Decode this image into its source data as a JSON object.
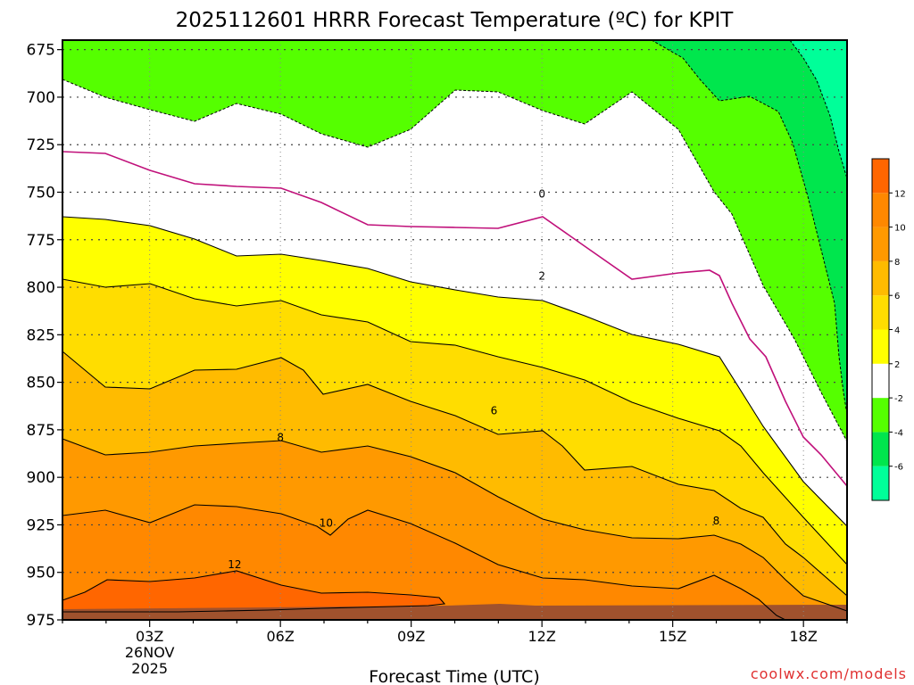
{
  "title": "2025112601 HRRR Forecast Temperature (ºC) for KPIT",
  "credit": "coolwx.com/models",
  "chart_data": {
    "type": "contour",
    "title": "2025112601 HRRR Forecast Temperature (ºC) for KPIT",
    "xlabel": "Forecast Time (UTC)",
    "ylabel": "",
    "x_hours_range": [
      1,
      19
    ],
    "ylim": [
      975,
      670
    ],
    "x_ticks": [
      {
        "hour": 3,
        "label": "03Z",
        "sub": [
          "26NOV",
          "2025"
        ]
      },
      {
        "hour": 6,
        "label": "06Z",
        "sub": []
      },
      {
        "hour": 9,
        "label": "09Z",
        "sub": []
      },
      {
        "hour": 12,
        "label": "12Z",
        "sub": []
      },
      {
        "hour": 15,
        "label": "15Z",
        "sub": []
      },
      {
        "hour": 18,
        "label": "18Z",
        "sub": []
      }
    ],
    "y_ticks": [
      675,
      700,
      725,
      750,
      775,
      800,
      825,
      850,
      875,
      900,
      925,
      950,
      975
    ],
    "grid": true,
    "colorbar": {
      "levels": [
        -8,
        -6,
        -4,
        -2,
        2,
        4,
        6,
        8,
        10,
        12,
        14
      ],
      "tick_labels": [
        "-6",
        "-4",
        "-2",
        "2",
        "4",
        "6",
        "8",
        "10",
        "12"
      ],
      "colors": [
        "#00ff99",
        "#00e64d",
        "#55ff00",
        "#ffffff",
        "#ffff00",
        "#ffdd00",
        "#ffbb00",
        "#ff9900",
        "#ff8800",
        "#ff6600"
      ]
    },
    "contour_labels": [
      {
        "text": "0",
        "hour": 12.0,
        "pressure": 751
      },
      {
        "text": "2",
        "hour": 12.0,
        "pressure": 794
      },
      {
        "text": "6",
        "hour": 10.9,
        "pressure": 865
      },
      {
        "text": "8",
        "hour": 6.0,
        "pressure": 879
      },
      {
        "text": "10",
        "hour": 7.05,
        "pressure": 924
      },
      {
        "text": "12",
        "hour": 4.95,
        "pressure": 946
      },
      {
        "text": "8",
        "hour": 16.0,
        "pressure": 923
      }
    ]
  }
}
